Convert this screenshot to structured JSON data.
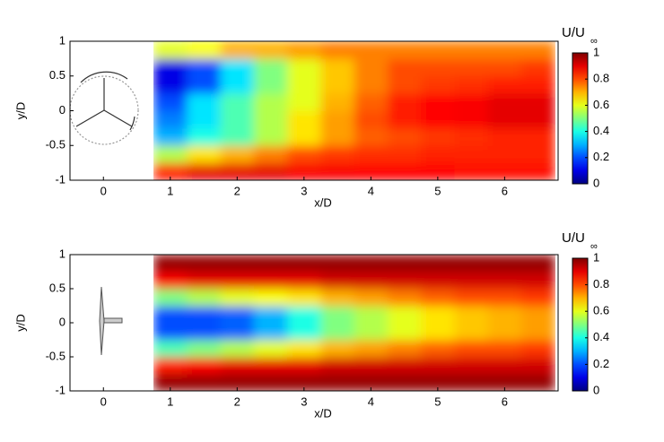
{
  "chart_data": [
    {
      "type": "heatmap",
      "colormap": "jet",
      "x": [
        1,
        1.5,
        2,
        2.5,
        3,
        3.5,
        4,
        4.5,
        5,
        5.5,
        6,
        6.5
      ],
      "y": [
        -0.875,
        -0.625,
        -0.375,
        -0.125,
        0.125,
        0.375,
        0.625,
        0.875
      ],
      "values": [
        [
          0.85,
          0.9,
          0.9,
          0.9,
          0.88,
          0.88,
          0.87,
          0.87,
          0.87,
          0.86,
          0.86,
          0.86
        ],
        [
          0.55,
          0.65,
          0.7,
          0.75,
          0.8,
          0.82,
          0.83,
          0.83,
          0.84,
          0.84,
          0.84,
          0.84
        ],
        [
          0.3,
          0.4,
          0.45,
          0.55,
          0.65,
          0.72,
          0.78,
          0.8,
          0.82,
          0.83,
          0.84,
          0.84
        ],
        [
          0.25,
          0.35,
          0.45,
          0.55,
          0.65,
          0.72,
          0.8,
          0.85,
          0.87,
          0.88,
          0.9,
          0.9
        ],
        [
          0.2,
          0.35,
          0.45,
          0.55,
          0.6,
          0.7,
          0.78,
          0.85,
          0.87,
          0.88,
          0.9,
          0.9
        ],
        [
          0.1,
          0.2,
          0.35,
          0.5,
          0.6,
          0.68,
          0.75,
          0.8,
          0.82,
          0.83,
          0.85,
          0.85
        ],
        [
          0.1,
          0.2,
          0.35,
          0.5,
          0.6,
          0.68,
          0.75,
          0.8,
          0.8,
          0.8,
          0.8,
          0.82
        ],
        [
          0.6,
          0.62,
          0.7,
          0.7,
          0.72,
          0.75,
          0.75,
          0.75,
          0.75,
          0.75,
          0.75,
          0.75
        ]
      ],
      "xlim": [
        -0.5,
        6.8
      ],
      "ylim": [
        -1,
        1
      ],
      "xticks": [
        0,
        1,
        2,
        3,
        4,
        5,
        6
      ],
      "yticks": [
        -1,
        -0.5,
        0,
        0.5,
        1
      ],
      "xlabel": "x/D",
      "ylabel": "y/D",
      "colorbar": {
        "label": "U/U",
        "label_sub": "∞",
        "lim": [
          0,
          1
        ],
        "ticks": [
          0,
          0.2,
          0.4,
          0.6,
          0.8,
          1
        ]
      }
    },
    {
      "type": "heatmap",
      "colormap": "jet",
      "x": [
        1,
        1.5,
        2,
        2.5,
        3,
        3.5,
        4,
        4.5,
        5,
        5.5,
        6,
        6.5
      ],
      "y": [
        -0.875,
        -0.625,
        -0.375,
        -0.125,
        0.125,
        0.375,
        0.625,
        0.875
      ],
      "values": [
        [
          0.98,
          0.98,
          0.98,
          0.98,
          0.98,
          0.98,
          0.98,
          0.98,
          0.98,
          0.98,
          0.98,
          0.98
        ],
        [
          0.85,
          0.88,
          0.9,
          0.9,
          0.9,
          0.92,
          0.92,
          0.92,
          0.92,
          0.92,
          0.92,
          0.92
        ],
        [
          0.45,
          0.5,
          0.55,
          0.6,
          0.65,
          0.7,
          0.72,
          0.75,
          0.78,
          0.8,
          0.8,
          0.82
        ],
        [
          0.2,
          0.2,
          0.22,
          0.3,
          0.4,
          0.5,
          0.55,
          0.6,
          0.65,
          0.68,
          0.7,
          0.72
        ],
        [
          0.2,
          0.2,
          0.22,
          0.3,
          0.4,
          0.5,
          0.55,
          0.6,
          0.65,
          0.68,
          0.7,
          0.72
        ],
        [
          0.5,
          0.55,
          0.6,
          0.62,
          0.65,
          0.7,
          0.72,
          0.75,
          0.78,
          0.8,
          0.8,
          0.82
        ],
        [
          0.88,
          0.9,
          0.9,
          0.9,
          0.9,
          0.92,
          0.92,
          0.92,
          0.92,
          0.92,
          0.92,
          0.92
        ],
        [
          0.98,
          0.98,
          0.98,
          0.98,
          0.98,
          0.98,
          0.98,
          0.98,
          0.98,
          0.98,
          0.98,
          0.98
        ]
      ],
      "xlim": [
        -0.5,
        6.8
      ],
      "ylim": [
        -1,
        1
      ],
      "xticks": [
        0,
        1,
        2,
        3,
        4,
        5,
        6
      ],
      "yticks": [
        -1,
        -0.5,
        0,
        0.5,
        1
      ],
      "xlabel": "x/D",
      "ylabel": "y/D",
      "colorbar": {
        "label": "U/U",
        "label_sub": "∞",
        "lim": [
          0,
          1
        ],
        "ticks": [
          0,
          0.2,
          0.4,
          0.6,
          0.8,
          1
        ]
      }
    }
  ]
}
